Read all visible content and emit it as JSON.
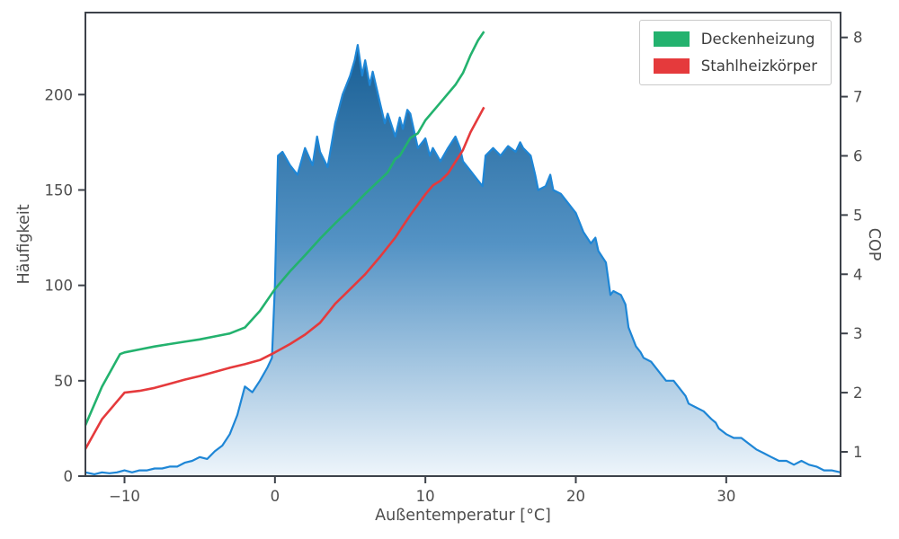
{
  "chart_data": {
    "type": "combo-area-line",
    "title": "",
    "xlabel": "Außentemperatur [°C]",
    "ylabel": "Häufigkeit",
    "y2label": "COP",
    "xlim": [
      -12.6,
      37.6
    ],
    "ylim": [
      0,
      243
    ],
    "y2lim": [
      0.59,
      8.42
    ],
    "xticks": [
      -10,
      0,
      10,
      20,
      30
    ],
    "yticks": [
      0,
      50,
      100,
      150,
      200
    ],
    "y2ticks": [
      1,
      2,
      3,
      4,
      5,
      6,
      7,
      8
    ],
    "grid": false,
    "legend_position": "upper right",
    "histogram": {
      "name": "Häufigkeit",
      "axis": "left",
      "line_color": "#1e86d6",
      "gradient": [
        {
          "offset": "0%",
          "color": "#0f568c"
        },
        {
          "offset": "50%",
          "color": "#5493c5"
        },
        {
          "offset": "100%",
          "color": "#eef5fb"
        }
      ],
      "x": [
        -12.6,
        -12,
        -11.5,
        -11,
        -10.5,
        -10,
        -9.5,
        -9,
        -8.5,
        -8,
        -7.5,
        -7,
        -6.5,
        -6,
        -5.5,
        -5,
        -4.5,
        -4,
        -3.5,
        -3,
        -2.5,
        -2,
        -1.5,
        -1,
        -0.5,
        -0.2,
        0,
        0.2,
        0.5,
        1,
        1.5,
        2,
        2.5,
        2.8,
        3,
        3.5,
        4,
        4.5,
        5,
        5.3,
        5.5,
        5.8,
        6,
        6.3,
        6.5,
        7,
        7.3,
        7.5,
        8,
        8.3,
        8.5,
        8.8,
        9,
        9.5,
        10,
        10.3,
        10.5,
        11,
        11.5,
        12,
        12.3,
        12.5,
        13,
        13.5,
        13.8,
        14,
        14.5,
        15,
        15.5,
        16,
        16.3,
        16.5,
        17,
        17.3,
        17.5,
        18,
        18.3,
        18.5,
        19,
        19.5,
        20,
        20.5,
        21,
        21.3,
        21.5,
        22,
        22.3,
        22.5,
        23,
        23.3,
        23.5,
        24,
        24.3,
        24.5,
        25,
        25.5,
        26,
        26.5,
        27,
        27.3,
        27.5,
        28,
        28.5,
        29,
        29.3,
        29.5,
        30,
        30.5,
        31,
        31.5,
        32,
        32.5,
        33,
        33.5,
        34,
        34.5,
        35,
        35.5,
        36,
        36.5,
        37,
        37.6
      ],
      "y": [
        2,
        1,
        2,
        1.5,
        2,
        3,
        2,
        3,
        3,
        4,
        4,
        5,
        5,
        7,
        8,
        10,
        9,
        13,
        16,
        22,
        32,
        47,
        44,
        50,
        57,
        62,
        100,
        168,
        170,
        163,
        158,
        172,
        163,
        178,
        170,
        162,
        185,
        200,
        210,
        218,
        226,
        210,
        218,
        205,
        212,
        195,
        185,
        190,
        178,
        188,
        182,
        192,
        190,
        172,
        177,
        168,
        172,
        165,
        172,
        178,
        172,
        165,
        160,
        155,
        152,
        168,
        172,
        168,
        173,
        170,
        175,
        172,
        168,
        158,
        150,
        152,
        158,
        150,
        148,
        143,
        138,
        128,
        122,
        125,
        118,
        112,
        95,
        97,
        95,
        90,
        78,
        68,
        65,
        62,
        60,
        55,
        50,
        50,
        45,
        42,
        38,
        36,
        34,
        30,
        28,
        25,
        22,
        20,
        20,
        17,
        14,
        12,
        10,
        8,
        8,
        6,
        8,
        6,
        5,
        3,
        3,
        2
      ]
    },
    "series": [
      {
        "id": "deckenheizung",
        "name": "Deckenheizung",
        "axis": "right",
        "color": "#23b26e",
        "x": [
          -12.6,
          -11.5,
          -10.3,
          -10,
          -9,
          -8,
          -7,
          -6,
          -5,
          -4,
          -3,
          -2,
          -1,
          0,
          1,
          2,
          3,
          4,
          5,
          6,
          7,
          7.5,
          8,
          8.3,
          9,
          9.5,
          10,
          11,
          12,
          12.5,
          13,
          13.5,
          13.9
        ],
        "y": [
          1.45,
          2.1,
          2.65,
          2.68,
          2.73,
          2.78,
          2.82,
          2.86,
          2.9,
          2.95,
          3.0,
          3.1,
          3.38,
          3.75,
          4.05,
          4.32,
          4.6,
          4.86,
          5.1,
          5.36,
          5.6,
          5.72,
          5.95,
          6.0,
          6.3,
          6.38,
          6.6,
          6.9,
          7.2,
          7.4,
          7.7,
          7.95,
          8.1
        ]
      },
      {
        "id": "stahlheizkoerper",
        "name": "Stahlheizkörper",
        "axis": "right",
        "color": "#e53a3c",
        "x": [
          -12.6,
          -11.5,
          -10,
          -9,
          -8,
          -7,
          -6,
          -5,
          -4,
          -3,
          -2,
          -1,
          0,
          1,
          2,
          3,
          4,
          5,
          6,
          7,
          8,
          9,
          10,
          10.5,
          11,
          11.5,
          12,
          12.5,
          13,
          13.9
        ],
        "y": [
          1.05,
          1.55,
          2.0,
          2.03,
          2.08,
          2.15,
          2.22,
          2.28,
          2.35,
          2.42,
          2.48,
          2.55,
          2.68,
          2.82,
          2.98,
          3.18,
          3.5,
          3.75,
          4.0,
          4.3,
          4.62,
          5.0,
          5.35,
          5.5,
          5.58,
          5.7,
          5.9,
          6.1,
          6.4,
          6.82
        ]
      }
    ]
  }
}
